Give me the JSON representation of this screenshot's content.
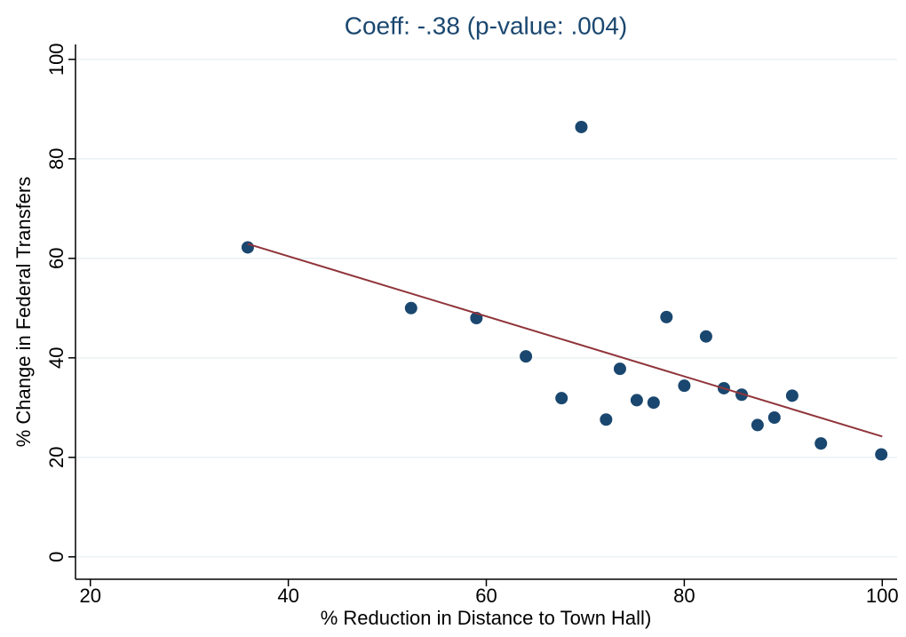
{
  "chart_data": {
    "type": "scatter",
    "title": "Coeff: -.38 (p-value: .004)",
    "x_label": "% Reduction in Distance to Town Hall)",
    "y_label": "% Change in Federal Transfers",
    "xlim": [
      18.5,
      101.5
    ],
    "ylim": [
      -4.5,
      103
    ],
    "xticks": [
      20,
      40,
      60,
      80,
      100
    ],
    "yticks": [
      0,
      20,
      40,
      60,
      80,
      100
    ],
    "grid": true,
    "series": [
      {
        "kind": "points",
        "color": "#1a476f",
        "x": [
          35.9,
          52.4,
          59.0,
          64.0,
          67.6,
          69.6,
          72.1,
          73.5,
          75.2,
          76.9,
          78.2,
          80.0,
          82.2,
          84.0,
          85.8,
          87.4,
          89.1,
          90.9,
          93.8,
          99.9
        ],
        "values": [
          62.2,
          50.0,
          48.0,
          40.3,
          31.9,
          86.4,
          27.6,
          37.8,
          31.5,
          31.0,
          48.2,
          34.4,
          44.3,
          33.9,
          32.6,
          26.5,
          28.0,
          32.4,
          22.8,
          20.6
        ]
      },
      {
        "kind": "line",
        "color": "#90353b",
        "x": [
          35.9,
          100
        ],
        "values": [
          62.9,
          24.2
        ]
      }
    ]
  }
}
